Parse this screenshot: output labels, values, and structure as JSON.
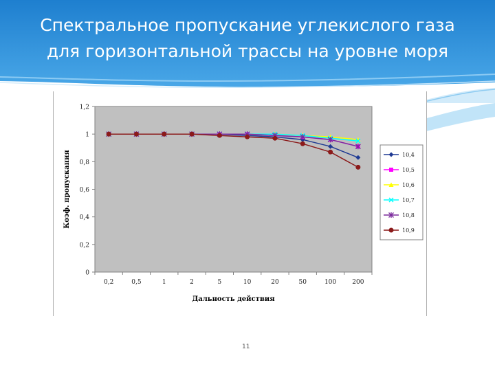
{
  "slide": {
    "title_line1": "Спектральное пропускание углекислого газа",
    "title_line2": "для горизонтальной трассы на уровне моря",
    "page_number": "11"
  },
  "colors": {
    "header_blue": "#2f8ed6",
    "header_light": "#5bb4ec",
    "plot_area": "#c0c0c0"
  },
  "chart_data": {
    "type": "line",
    "xlabel": "Дальность действия",
    "ylabel": "Коэф. пропускания",
    "categories": [
      "0,2",
      "0,5",
      "1",
      "2",
      "5",
      "10",
      "20",
      "50",
      "100",
      "200"
    ],
    "ylim": [
      0,
      1.2
    ],
    "yticks": [
      0,
      0.2,
      0.4,
      0.6,
      0.8,
      1,
      1.2
    ],
    "ytick_labels": [
      "0",
      "0,2",
      "0,4",
      "0,6",
      "0,8",
      "1",
      "1,2"
    ],
    "grid": false,
    "legend_position": "right",
    "series": [
      {
        "name": "10,4",
        "color": "#1f3a93",
        "marker": "diamond",
        "values": [
          1,
          1,
          1,
          1,
          1,
          0.99,
          0.98,
          0.96,
          0.91,
          0.83
        ]
      },
      {
        "name": "10,5",
        "color": "#ff00ff",
        "marker": "square",
        "values": [
          1,
          1,
          1,
          1,
          1,
          1,
          0.99,
          0.98,
          0.96,
          0.91
        ]
      },
      {
        "name": "10,6",
        "color": "#ffff00",
        "marker": "triangle",
        "values": [
          1,
          1,
          1,
          1,
          1,
          1,
          1,
          0.99,
          0.98,
          0.96
        ]
      },
      {
        "name": "10,7",
        "color": "#00ffff",
        "marker": "x",
        "values": [
          1,
          1,
          1,
          1,
          1,
          1,
          1,
          0.99,
          0.97,
          0.95
        ]
      },
      {
        "name": "10,8",
        "color": "#7a2a9c",
        "marker": "star",
        "values": [
          1,
          1,
          1,
          1,
          1,
          1,
          0.99,
          0.98,
          0.96,
          0.91
        ]
      },
      {
        "name": "10,9",
        "color": "#8b1a1a",
        "marker": "circle",
        "values": [
          1,
          1,
          1,
          1,
          0.99,
          0.98,
          0.97,
          0.93,
          0.87,
          0.76
        ]
      }
    ]
  }
}
